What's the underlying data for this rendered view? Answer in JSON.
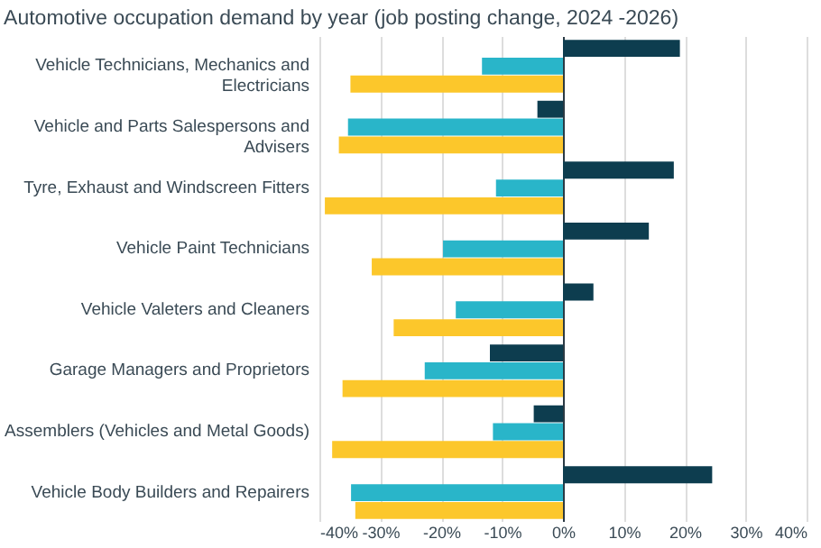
{
  "chart_data": {
    "type": "bar",
    "orientation": "horizontal",
    "title": "Automotive occupation demand by year (job posting change, 2024 -2026)",
    "categories": [
      "Vehicle Technicians, Mechanics and Electricians",
      "Vehicle and Parts Salespersons and Advisers",
      "Tyre, Exhaust and Windscreen Fitters",
      "Vehicle Paint Technicians",
      "Vehicle Valeters and Cleaners",
      "Garage Managers and Proprietors",
      "Assemblers (Vehicles and Metal Goods)",
      "Vehicle Body Builders and Repairers"
    ],
    "series": [
      {
        "color": "#0d3d4f",
        "values": [
          19.2,
          -4.2,
          18.2,
          14.1,
          5.0,
          -12.0,
          -4.8,
          24.5
        ]
      },
      {
        "color": "#29b5c9",
        "values": [
          -13.3,
          -35.3,
          -11.0,
          -19.7,
          -17.6,
          -22.7,
          -11.5,
          -34.8
        ]
      },
      {
        "color": "#fcc72b",
        "values": [
          -34.9,
          -36.8,
          -39.1,
          -31.4,
          -27.8,
          -36.2,
          -37.9,
          -34.1
        ]
      }
    ],
    "xlim": [
      -40,
      40
    ],
    "xticks": [
      {
        "value": -40,
        "label": "-40%"
      },
      {
        "value": -30,
        "label": "-30%"
      },
      {
        "value": -20,
        "label": "-20%"
      },
      {
        "value": -10,
        "label": "-10%"
      },
      {
        "value": 0,
        "label": "0%"
      },
      {
        "value": 10,
        "label": "10%"
      },
      {
        "value": 20,
        "label": "20%"
      },
      {
        "value": 30,
        "label": "30%"
      },
      {
        "value": 40,
        "label": "40%"
      }
    ],
    "grid": "x",
    "legend": false
  }
}
